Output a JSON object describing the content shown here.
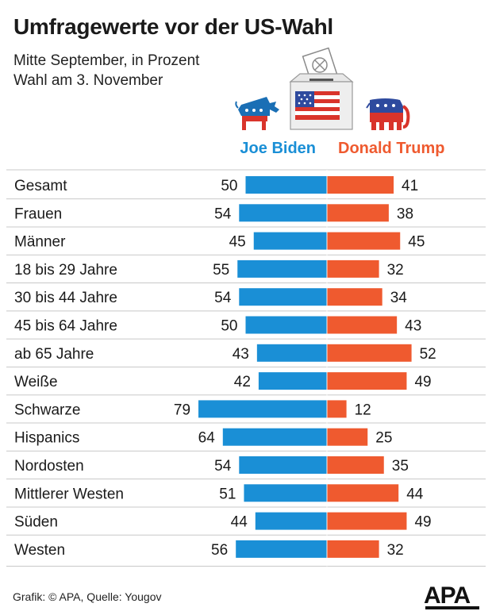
{
  "header": {
    "title": "Umfragewerte vor der US-Wahl",
    "subtitle_1": "Mitte September, in Prozent",
    "subtitle_2": "Wahl am 3. November"
  },
  "legend": {
    "biden": "Joe Biden",
    "trump": "Donald Trump"
  },
  "icons": [
    "ballot-box-with-us-flag-icon",
    "democratic-donkey-icon",
    "republican-elephant-icon"
  ],
  "colors": {
    "biden": "#1a8fd6",
    "trump": "#ef5a2f",
    "divider": "#c8c8c8",
    "text": "#1a1a1a"
  },
  "chart_data": {
    "type": "bar",
    "orientation": "diverging-horizontal",
    "categories": [
      "Gesamt",
      "Frauen",
      "Männer",
      "18 bis 29 Jahre",
      "30 bis 44 Jahre",
      "45 bis 64 Jahre",
      "ab 65 Jahre",
      "Weiße",
      "Schwarze",
      "Hispanics",
      "Nordosten",
      "Mittlerer Westen",
      "Süden",
      "Westen"
    ],
    "series": [
      {
        "name": "Joe Biden",
        "values": [
          50,
          54,
          45,
          55,
          54,
          50,
          43,
          42,
          79,
          64,
          54,
          51,
          44,
          56
        ]
      },
      {
        "name": "Donald Trump",
        "values": [
          41,
          38,
          45,
          32,
          34,
          43,
          52,
          49,
          12,
          25,
          35,
          44,
          49,
          32
        ]
      }
    ]
  },
  "footer": {
    "credit": "Grafik: © APA, Quelle: Yougov",
    "logo": "APA"
  }
}
